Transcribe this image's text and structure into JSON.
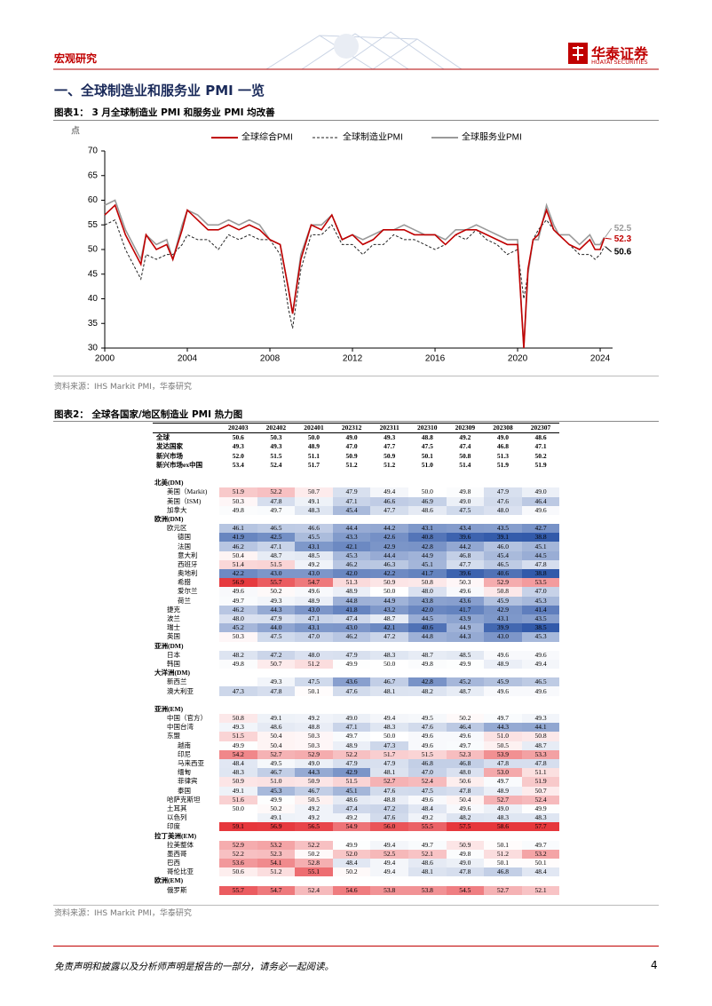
{
  "header": {
    "section": "宏观研究",
    "logo_cn": "华泰证券",
    "logo_en": "HUATAI SECURITIES"
  },
  "heading": "一、全球制造业和服务业 PMI 一览",
  "figure1": {
    "caption": "图表1： 3 月全球制造业 PMI 和服务业 PMI 均改善",
    "source": "资料来源：IHS Markit PMI，华泰研究",
    "chart_data": {
      "type": "line",
      "y_label": "点",
      "x": [
        2000,
        2000.5,
        2001,
        2001.5,
        2001.75,
        2002,
        2002.5,
        2003,
        2003.3,
        2003.75,
        2004,
        2004.5,
        2005,
        2005.5,
        2006,
        2006.5,
        2007,
        2007.5,
        2008,
        2008.5,
        2008.9,
        2009.1,
        2009.5,
        2010,
        2010.5,
        2011,
        2011.5,
        2012,
        2012.5,
        2013,
        2013.5,
        2014,
        2014.5,
        2015,
        2015.5,
        2016,
        2016.5,
        2017,
        2017.5,
        2018,
        2018.5,
        2019,
        2019.5,
        2020,
        2020.3,
        2020.5,
        2020.75,
        2021,
        2021.4,
        2021.75,
        2022,
        2022.5,
        2023,
        2023.5,
        2023.75,
        2024,
        2024.2
      ],
      "series": [
        {
          "name": "全球综合PMI",
          "color": "#c00000",
          "dash": false,
          "values": [
            57,
            59,
            53,
            49,
            47,
            53,
            50,
            51,
            48,
            54,
            58,
            56,
            54,
            54,
            55,
            54,
            55,
            54,
            52,
            51,
            42,
            37,
            48,
            55,
            54,
            57,
            52,
            53,
            51,
            52,
            54,
            54,
            54,
            53,
            53,
            53,
            51,
            53,
            54,
            54,
            53,
            52,
            51,
            51,
            30,
            46,
            52,
            53,
            58,
            54,
            53,
            51,
            50,
            52,
            50,
            50,
            52.3
          ]
        },
        {
          "name": "全球制造业PMI",
          "color": "#222222",
          "dash": true,
          "values": [
            55,
            56,
            50,
            46,
            44,
            49,
            48,
            49,
            49,
            51,
            53,
            52,
            52,
            50,
            53,
            52,
            53,
            52,
            52,
            49,
            38,
            34,
            46,
            53,
            53,
            55,
            51,
            51,
            49,
            51,
            51,
            53,
            52,
            52,
            51,
            50,
            51,
            53,
            52,
            54,
            52,
            51,
            49,
            50,
            40,
            45,
            52,
            54,
            56,
            54,
            53,
            51,
            49,
            49,
            48,
            49,
            50.6
          ]
        },
        {
          "name": "全球服务业PMI",
          "color": "#9a9a9a",
          "dash": false,
          "values": [
            59,
            60,
            54,
            50,
            48,
            53,
            51,
            52,
            48,
            55,
            58,
            57,
            55,
            55,
            56,
            55,
            56,
            55,
            52,
            51,
            42,
            37,
            49,
            55,
            55,
            57,
            52,
            53,
            52,
            53,
            54,
            54,
            55,
            54,
            53,
            53,
            52,
            54,
            54,
            55,
            54,
            53,
            52,
            52,
            30,
            45,
            52,
            52,
            59,
            55,
            53,
            53,
            51,
            53,
            51,
            51,
            52.5
          ]
        }
      ],
      "xlim": [
        2000,
        2024.6
      ],
      "xticks": [
        2000,
        2004,
        2008,
        2012,
        2016,
        2020,
        2024
      ],
      "ylim": [
        30,
        70
      ],
      "yticks": [
        30,
        35,
        40,
        45,
        50,
        55,
        60,
        65,
        70
      ],
      "end_labels": true
    }
  },
  "figure2": {
    "caption": "图表2： 全球各国家/地区制造业 PMI 热力图",
    "source": "资料来源：IHS Markit PMI，华泰研究",
    "table": {
      "columns": [
        "202403",
        "202402",
        "202401",
        "202312",
        "202311",
        "202310",
        "202309",
        "202308",
        "202307"
      ],
      "summary": [
        {
          "label": "全球",
          "values": [
            "50.6",
            "50.3",
            "50.0",
            "49.0",
            "49.3",
            "48.8",
            "49.2",
            "49.0",
            "48.6"
          ]
        },
        {
          "label": "发达国家",
          "values": [
            "49.3",
            "49.3",
            "48.9",
            "47.0",
            "47.7",
            "47.5",
            "47.4",
            "46.8",
            "47.1"
          ]
        },
        {
          "label": "新兴市场",
          "values": [
            "52.0",
            "51.5",
            "51.1",
            "50.9",
            "50.9",
            "50.1",
            "50.8",
            "51.3",
            "50.2"
          ]
        },
        {
          "label": "新兴市场ex中国",
          "values": [
            "53.4",
            "52.4",
            "51.7",
            "51.2",
            "51.2",
            "51.0",
            "51.4",
            "51.9",
            "51.9"
          ]
        }
      ],
      "developed": [
        {
          "title": "北美(DM)",
          "rows": [
            {
              "label": "美国（Markit)",
              "values": [
                "51.9",
                "52.2",
                "50.7",
                "47.9",
                "49.4",
                "50.0",
                "49.8",
                "47.9",
                "49.0"
              ]
            },
            {
              "label": "美国（ISM)",
              "values": [
                "50.3",
                "47.8",
                "49.1",
                "47.1",
                "46.6",
                "46.9",
                "49.0",
                "47.6",
                "46.4"
              ]
            },
            {
              "label": "加拿大",
              "values": [
                "49.8",
                "49.7",
                "48.3",
                "45.4",
                "47.7",
                "48.6",
                "47.5",
                "48.0",
                "49.6"
              ]
            }
          ]
        },
        {
          "title": "欧洲(DM)",
          "rows": [
            {
              "label": "欧元区",
              "values": [
                "46.1",
                "46.5",
                "46.6",
                "44.4",
                "44.2",
                "43.1",
                "43.4",
                "43.5",
                "42.7"
              ],
              "children": [
                {
                  "label": "德国",
                  "values": [
                    "41.9",
                    "42.5",
                    "45.5",
                    "43.3",
                    "42.6",
                    "40.8",
                    "39.6",
                    "39.1",
                    "38.8"
                  ]
                },
                {
                  "label": "法国",
                  "values": [
                    "46.2",
                    "47.1",
                    "43.1",
                    "42.1",
                    "42.9",
                    "42.8",
                    "44.2",
                    "46.0",
                    "45.1"
                  ]
                },
                {
                  "label": "意大利",
                  "values": [
                    "50.4",
                    "48.7",
                    "48.5",
                    "45.3",
                    "44.4",
                    "44.9",
                    "46.8",
                    "45.4",
                    "44.5"
                  ]
                },
                {
                  "label": "西班牙",
                  "values": [
                    "51.4",
                    "51.5",
                    "49.2",
                    "46.2",
                    "46.3",
                    "45.1",
                    "47.7",
                    "46.5",
                    "47.8"
                  ]
                },
                {
                  "label": "奥地利",
                  "values": [
                    "42.2",
                    "43.0",
                    "43.0",
                    "42.0",
                    "42.2",
                    "41.7",
                    "39.6",
                    "40.6",
                    "38.8"
                  ]
                },
                {
                  "label": "希腊",
                  "values": [
                    "56.9",
                    "55.7",
                    "54.7",
                    "51.3",
                    "50.9",
                    "50.8",
                    "50.3",
                    "52.9",
                    "53.5"
                  ]
                },
                {
                  "label": "爱尔兰",
                  "values": [
                    "49.6",
                    "50.2",
                    "49.6",
                    "48.9",
                    "50.0",
                    "48.0",
                    "49.6",
                    "50.8",
                    "47.0"
                  ]
                },
                {
                  "label": "荷兰",
                  "values": [
                    "49.7",
                    "49.3",
                    "48.9",
                    "44.8",
                    "44.9",
                    "43.8",
                    "43.6",
                    "45.9",
                    "45.3"
                  ]
                }
              ]
            },
            {
              "label": "捷克",
              "values": [
                "46.2",
                "44.3",
                "43.0",
                "41.8",
                "43.2",
                "42.0",
                "41.7",
                "42.9",
                "41.4"
              ]
            },
            {
              "label": "波兰",
              "values": [
                "48.0",
                "47.9",
                "47.1",
                "47.4",
                "48.7",
                "44.5",
                "43.9",
                "43.1",
                "43.5"
              ]
            },
            {
              "label": "瑞士",
              "values": [
                "45.2",
                "44.0",
                "43.1",
                "43.0",
                "42.1",
                "40.6",
                "44.9",
                "39.9",
                "38.5"
              ]
            },
            {
              "label": "英国",
              "values": [
                "50.3",
                "47.5",
                "47.0",
                "46.2",
                "47.2",
                "44.8",
                "44.3",
                "43.0",
                "45.3"
              ]
            }
          ]
        },
        {
          "title": "亚洲(DM)",
          "rows": [
            {
              "label": "日本",
              "values": [
                "48.2",
                "47.2",
                "48.0",
                "47.9",
                "48.3",
                "48.7",
                "48.5",
                "49.6",
                "49.6"
              ]
            },
            {
              "label": "韩国",
              "values": [
                "49.8",
                "50.7",
                "51.2",
                "49.9",
                "50.0",
                "49.8",
                "49.9",
                "48.9",
                "49.4"
              ]
            }
          ]
        },
        {
          "title": "大洋洲(DM)",
          "rows": [
            {
              "label": "新西兰",
              "values": [
                null,
                "49.3",
                "47.5",
                "43.6",
                "46.7",
                "42.8",
                "45.2",
                "45.9",
                "46.5"
              ]
            },
            {
              "label": "澳大利亚",
              "values": [
                "47.3",
                "47.8",
                "50.1",
                "47.6",
                "48.1",
                "48.2",
                "48.7",
                "49.6",
                "49.6"
              ]
            }
          ]
        }
      ],
      "emerging": [
        {
          "title": "亚洲(EM)",
          "rows": [
            {
              "label": "中国（官方）",
              "values": [
                "50.8",
                "49.1",
                "49.2",
                "49.0",
                "49.4",
                "49.5",
                "50.2",
                "49.7",
                "49.3"
              ]
            },
            {
              "label": "中国台湾",
              "values": [
                "49.3",
                "48.6",
                "48.8",
                "47.1",
                "48.3",
                "47.6",
                "46.4",
                "44.3",
                "44.1"
              ]
            },
            {
              "label": "东盟",
              "values": [
                "51.5",
                "50.4",
                "50.3",
                "49.7",
                "50.0",
                "49.6",
                "49.6",
                "51.0",
                "50.8"
              ],
              "children": [
                {
                  "label": "越南",
                  "values": [
                    "49.9",
                    "50.4",
                    "50.3",
                    "48.9",
                    "47.3",
                    "49.6",
                    "49.7",
                    "50.5",
                    "48.7"
                  ]
                },
                {
                  "label": "印尼",
                  "values": [
                    "54.2",
                    "52.7",
                    "52.9",
                    "52.2",
                    "51.7",
                    "51.5",
                    "52.3",
                    "53.9",
                    "53.3"
                  ]
                },
                {
                  "label": "马来西亚",
                  "values": [
                    "48.4",
                    "49.5",
                    "49.0",
                    "47.9",
                    "47.9",
                    "46.8",
                    "46.8",
                    "47.8",
                    "47.8"
                  ]
                },
                {
                  "label": "缅甸",
                  "values": [
                    "48.3",
                    "46.7",
                    "44.3",
                    "42.9",
                    "48.1",
                    "47.0",
                    "48.0",
                    "53.0",
                    "51.1"
                  ]
                },
                {
                  "label": "菲律宾",
                  "values": [
                    "50.9",
                    "51.0",
                    "50.9",
                    "51.5",
                    "52.7",
                    "52.4",
                    "50.6",
                    "49.7",
                    "51.9"
                  ]
                },
                {
                  "label": "泰国",
                  "values": [
                    "49.1",
                    "45.3",
                    "46.7",
                    "45.1",
                    "47.6",
                    "47.5",
                    "47.8",
                    "48.9",
                    "50.7"
                  ]
                }
              ]
            },
            {
              "label": "哈萨克斯坦",
              "values": [
                "51.6",
                "49.9",
                "50.5",
                "48.6",
                "48.8",
                "49.6",
                "50.4",
                "52.7",
                "52.4"
              ]
            },
            {
              "label": "土耳其",
              "values": [
                "50.0",
                "50.2",
                "49.2",
                "47.4",
                "47.2",
                "48.4",
                "49.6",
                "49.0",
                "49.9"
              ]
            },
            {
              "label": "以色列",
              "values": [
                null,
                "49.1",
                "49.2",
                "49.2",
                "47.6",
                "49.2",
                "48.2",
                "48.3",
                "48.3"
              ]
            },
            {
              "label": "印度",
              "values": [
                "59.1",
                "56.9",
                "56.5",
                "54.9",
                "56.0",
                "55.5",
                "57.5",
                "58.6",
                "57.7"
              ]
            }
          ]
        },
        {
          "title": "拉丁美洲(EM)",
          "rows": [
            {
              "label": "拉美整体",
              "values": [
                "52.9",
                "53.2",
                "52.2",
                "49.9",
                "49.4",
                "49.7",
                "50.9",
                "50.1",
                "49.7"
              ]
            },
            {
              "label": "墨西哥",
              "values": [
                "52.2",
                "52.3",
                "50.2",
                "52.0",
                "52.5",
                "52.1",
                "49.8",
                "51.2",
                "53.2"
              ]
            },
            {
              "label": "巴西",
              "values": [
                "53.6",
                "54.1",
                "52.8",
                "48.4",
                "49.4",
                "48.6",
                "49.0",
                "50.1",
                "50.1"
              ]
            },
            {
              "label": "哥伦比亚",
              "values": [
                "50.6",
                "51.2",
                "55.1",
                "50.2",
                "49.4",
                "48.1",
                "47.8",
                "46.8",
                "48.4"
              ]
            }
          ]
        },
        {
          "title": "欧洲(EM)",
          "rows": [
            {
              "label": "俄罗斯",
              "values": [
                "55.7",
                "54.7",
                "52.4",
                "54.6",
                "53.8",
                "53.8",
                "54.5",
                "52.7",
                "52.1"
              ]
            }
          ]
        }
      ]
    }
  },
  "footer": {
    "disclaimer": "免责声明和披露以及分析师声明是报告的一部分，请务必一起阅读。",
    "page": "4"
  }
}
